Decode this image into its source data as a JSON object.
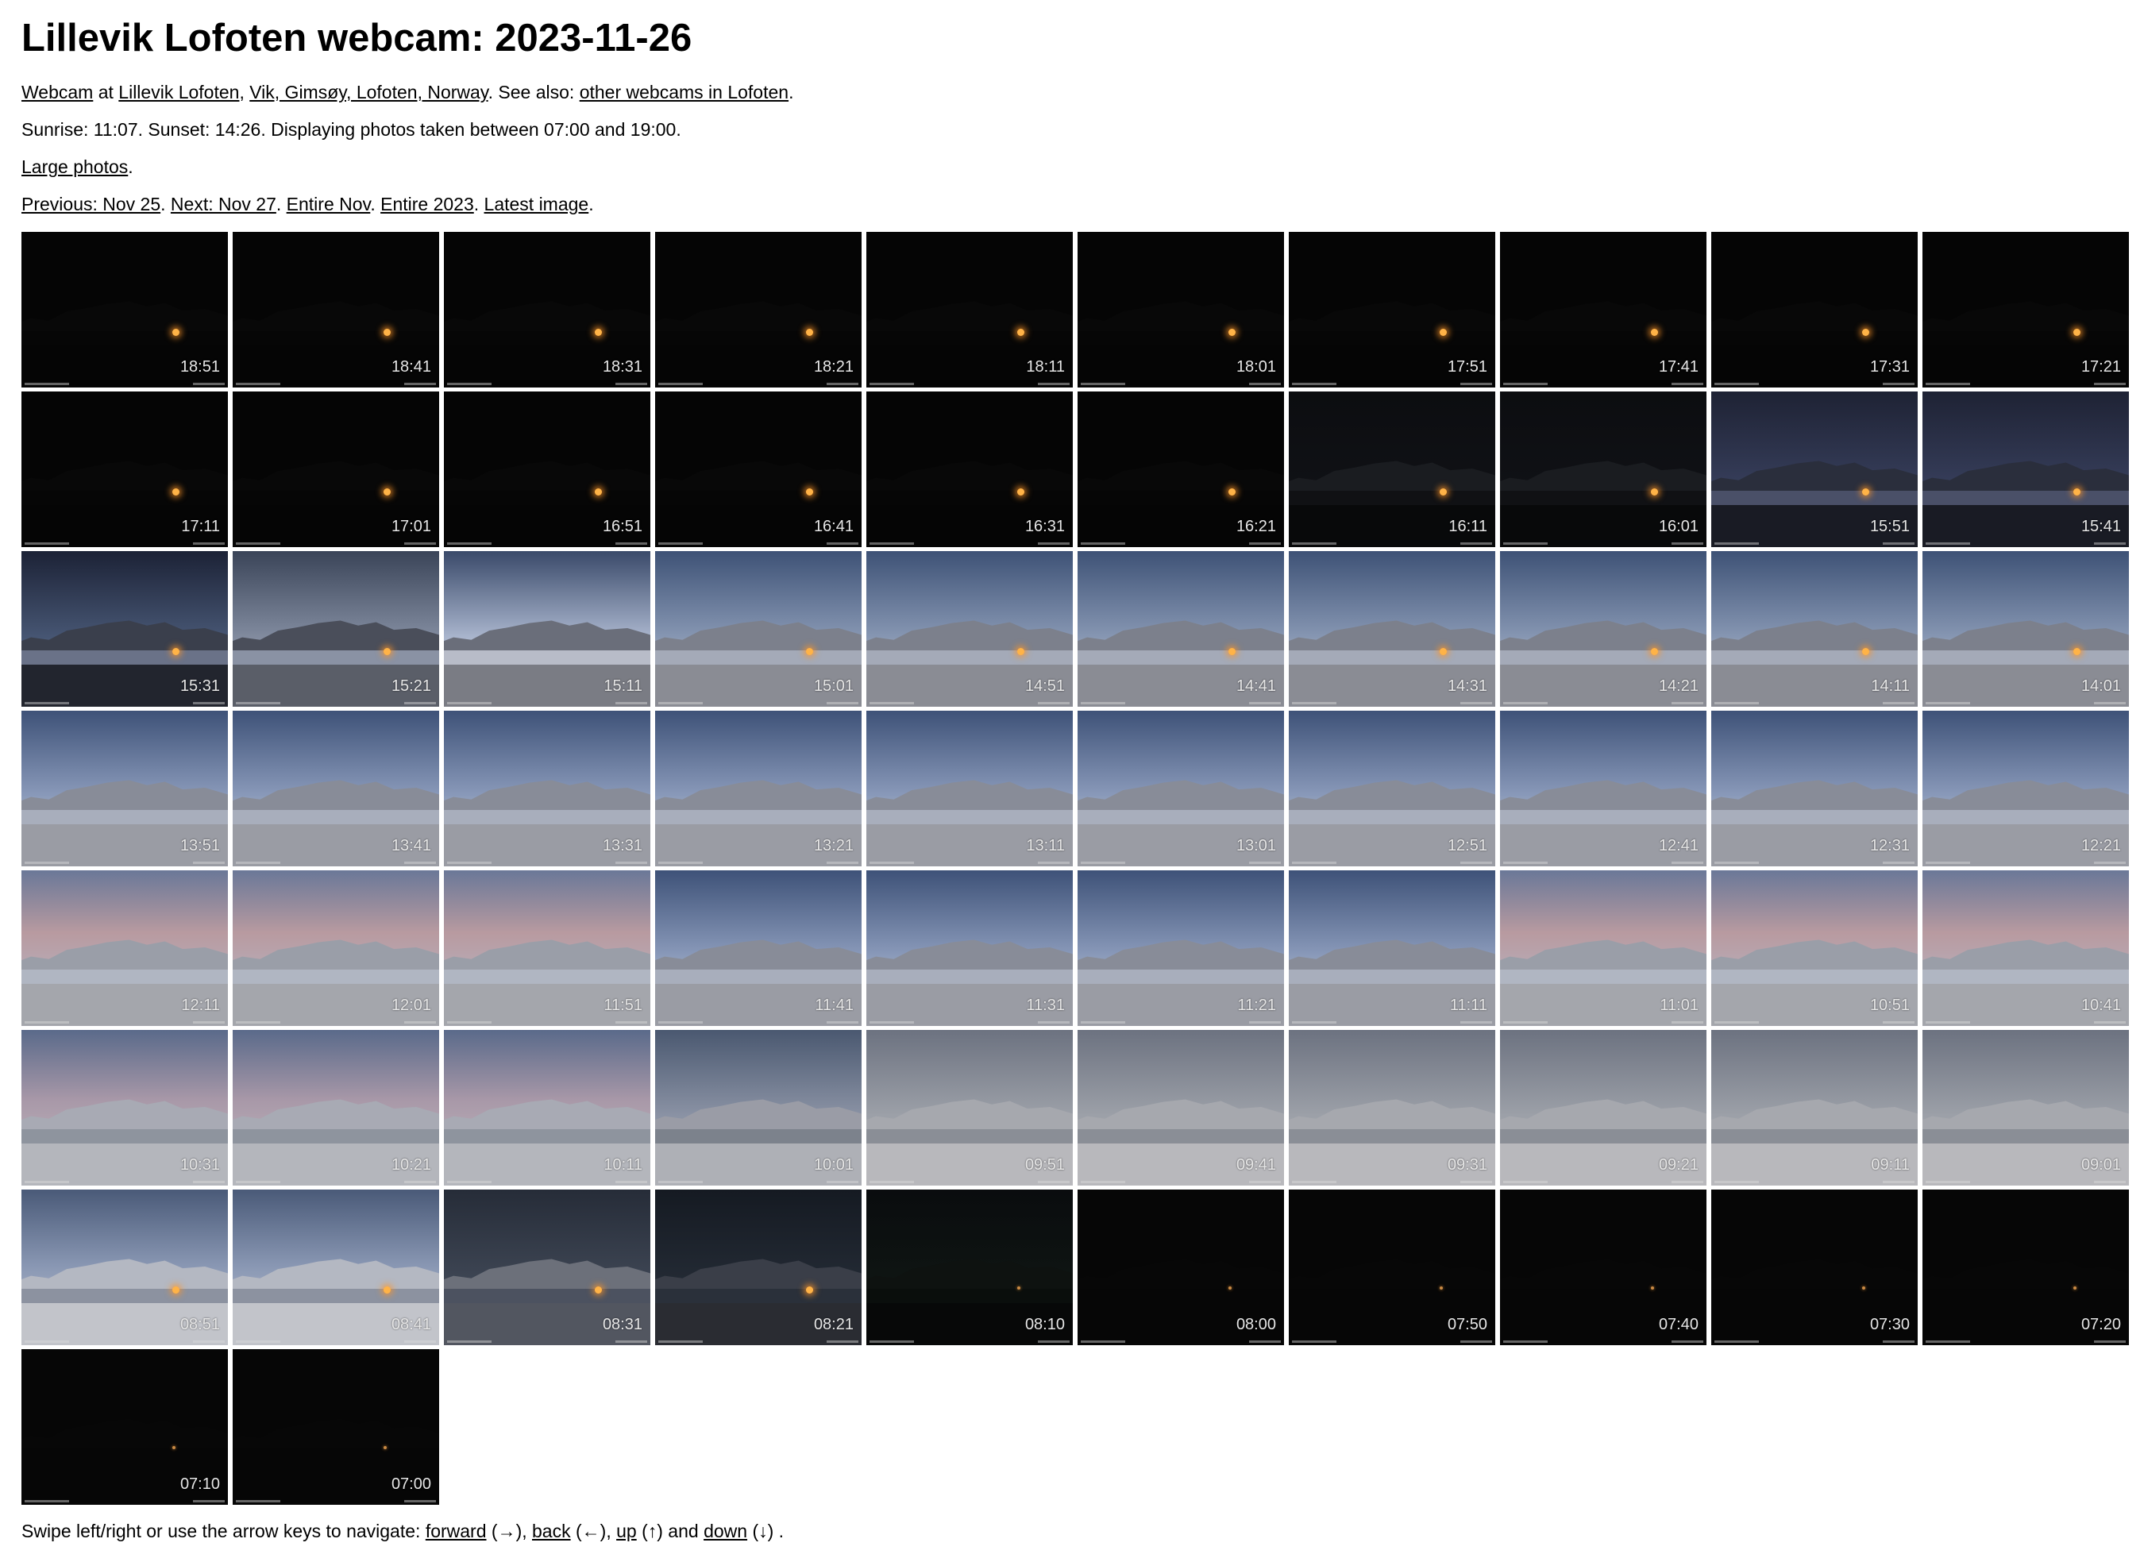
{
  "page": {
    "title": "Lillevik Lofoten webcam: 2023-11-26",
    "intro": {
      "webcam_link": "Webcam",
      "at_text": " at ",
      "place_link": "Lillevik Lofoten",
      "comma": ", ",
      "location_link": "Vik, Gimsøy, Lofoten, Norway",
      "see_also_text": ". See also: ",
      "other_link": "other webcams in Lofoten",
      "end": "."
    },
    "sun_line": "Sunrise: 11:07. Sunset: 14:26. Displaying photos taken between 07:00 and 19:00.",
    "large_photos": {
      "link": "Large photos",
      "end": "."
    },
    "nav": {
      "previous": "Previous: Nov 25",
      "next": "Next: Nov 27",
      "entire_month": "Entire Nov",
      "entire_year": "Entire 2023",
      "latest": "Latest image",
      "sep": ". ",
      "end": "."
    },
    "footer": {
      "prefix": "Swipe left/right or use the arrow keys to navigate: ",
      "forward": "forward",
      "forward_arrow": " (→), ",
      "back": "back",
      "back_arrow": " (←), ",
      "up": "up",
      "up_arrow": " (↑) and ",
      "down": "down",
      "down_arrow": " (↓) ."
    }
  },
  "photos": [
    {
      "time": "18:51",
      "scene": "night-lamp"
    },
    {
      "time": "18:41",
      "scene": "night-lamp"
    },
    {
      "time": "18:31",
      "scene": "night-lamp"
    },
    {
      "time": "18:21",
      "scene": "night-lamp"
    },
    {
      "time": "18:11",
      "scene": "night-lamp"
    },
    {
      "time": "18:01",
      "scene": "night-lamp"
    },
    {
      "time": "17:51",
      "scene": "night-lamp"
    },
    {
      "time": "17:41",
      "scene": "night-lamp"
    },
    {
      "time": "17:31",
      "scene": "night-lamp"
    },
    {
      "time": "17:21",
      "scene": "night-lamp"
    },
    {
      "time": "17:11",
      "scene": "night-lamp"
    },
    {
      "time": "17:01",
      "scene": "night-lamp"
    },
    {
      "time": "16:51",
      "scene": "night-lamp"
    },
    {
      "time": "16:41",
      "scene": "night-lamp"
    },
    {
      "time": "16:31",
      "scene": "night-lamp"
    },
    {
      "time": "16:21",
      "scene": "night-lamp"
    },
    {
      "time": "16:11",
      "scene": "dark-outline"
    },
    {
      "time": "16:01",
      "scene": "dark-outline"
    },
    {
      "time": "15:51",
      "scene": "late-blue"
    },
    {
      "time": "15:41",
      "scene": "late-blue"
    },
    {
      "time": "15:31",
      "scene": "dusk"
    },
    {
      "time": "15:21",
      "scene": "cloudy-dusk"
    },
    {
      "time": "15:11",
      "scene": "bright-sun"
    },
    {
      "time": "15:01",
      "scene": "sunset-glow"
    },
    {
      "time": "14:51",
      "scene": "sunset-glow"
    },
    {
      "time": "14:41",
      "scene": "sunset-glow"
    },
    {
      "time": "14:31",
      "scene": "sunset-glow"
    },
    {
      "time": "14:21",
      "scene": "sunset-glow"
    },
    {
      "time": "14:11",
      "scene": "sunset-glow"
    },
    {
      "time": "14:01",
      "scene": "sunset-glow"
    },
    {
      "time": "13:51",
      "scene": "day-clear"
    },
    {
      "time": "13:41",
      "scene": "day-clear"
    },
    {
      "time": "13:31",
      "scene": "day-clear"
    },
    {
      "time": "13:21",
      "scene": "day-clear"
    },
    {
      "time": "13:11",
      "scene": "day-clear"
    },
    {
      "time": "13:01",
      "scene": "day-clear"
    },
    {
      "time": "12:51",
      "scene": "day-clear"
    },
    {
      "time": "12:41",
      "scene": "day-clear"
    },
    {
      "time": "12:31",
      "scene": "day-clear"
    },
    {
      "time": "12:21",
      "scene": "day-clear"
    },
    {
      "time": "12:11",
      "scene": "day-pink"
    },
    {
      "time": "12:01",
      "scene": "day-pink"
    },
    {
      "time": "11:51",
      "scene": "day-pink"
    },
    {
      "time": "11:41",
      "scene": "day-clear"
    },
    {
      "time": "11:31",
      "scene": "day-clear"
    },
    {
      "time": "11:21",
      "scene": "day-clear"
    },
    {
      "time": "11:11",
      "scene": "day-clear"
    },
    {
      "time": "11:01",
      "scene": "day-pink"
    },
    {
      "time": "10:51",
      "scene": "day-pink"
    },
    {
      "time": "10:41",
      "scene": "day-pink"
    },
    {
      "time": "10:31",
      "scene": "morning-pink"
    },
    {
      "time": "10:21",
      "scene": "morning-pink"
    },
    {
      "time": "10:11",
      "scene": "morning-pink"
    },
    {
      "time": "10:01",
      "scene": "morning-grey"
    },
    {
      "time": "09:51",
      "scene": "overcast"
    },
    {
      "time": "09:41",
      "scene": "overcast"
    },
    {
      "time": "09:31",
      "scene": "overcast"
    },
    {
      "time": "09:21",
      "scene": "overcast"
    },
    {
      "time": "09:11",
      "scene": "overcast"
    },
    {
      "time": "09:01",
      "scene": "overcast"
    },
    {
      "time": "08:51",
      "scene": "early-blue"
    },
    {
      "time": "08:41",
      "scene": "early-blue"
    },
    {
      "time": "08:31",
      "scene": "early-dark"
    },
    {
      "time": "08:21",
      "scene": "early-darker"
    },
    {
      "time": "08:10",
      "scene": "aurora"
    },
    {
      "time": "08:00",
      "scene": "night-dim"
    },
    {
      "time": "07:50",
      "scene": "night-dim"
    },
    {
      "time": "07:40",
      "scene": "night-dim"
    },
    {
      "time": "07:30",
      "scene": "night-dim"
    },
    {
      "time": "07:20",
      "scene": "night-dim"
    },
    {
      "time": "07:10",
      "scene": "night-dim"
    },
    {
      "time": "07:00",
      "scene": "night-dim"
    }
  ]
}
